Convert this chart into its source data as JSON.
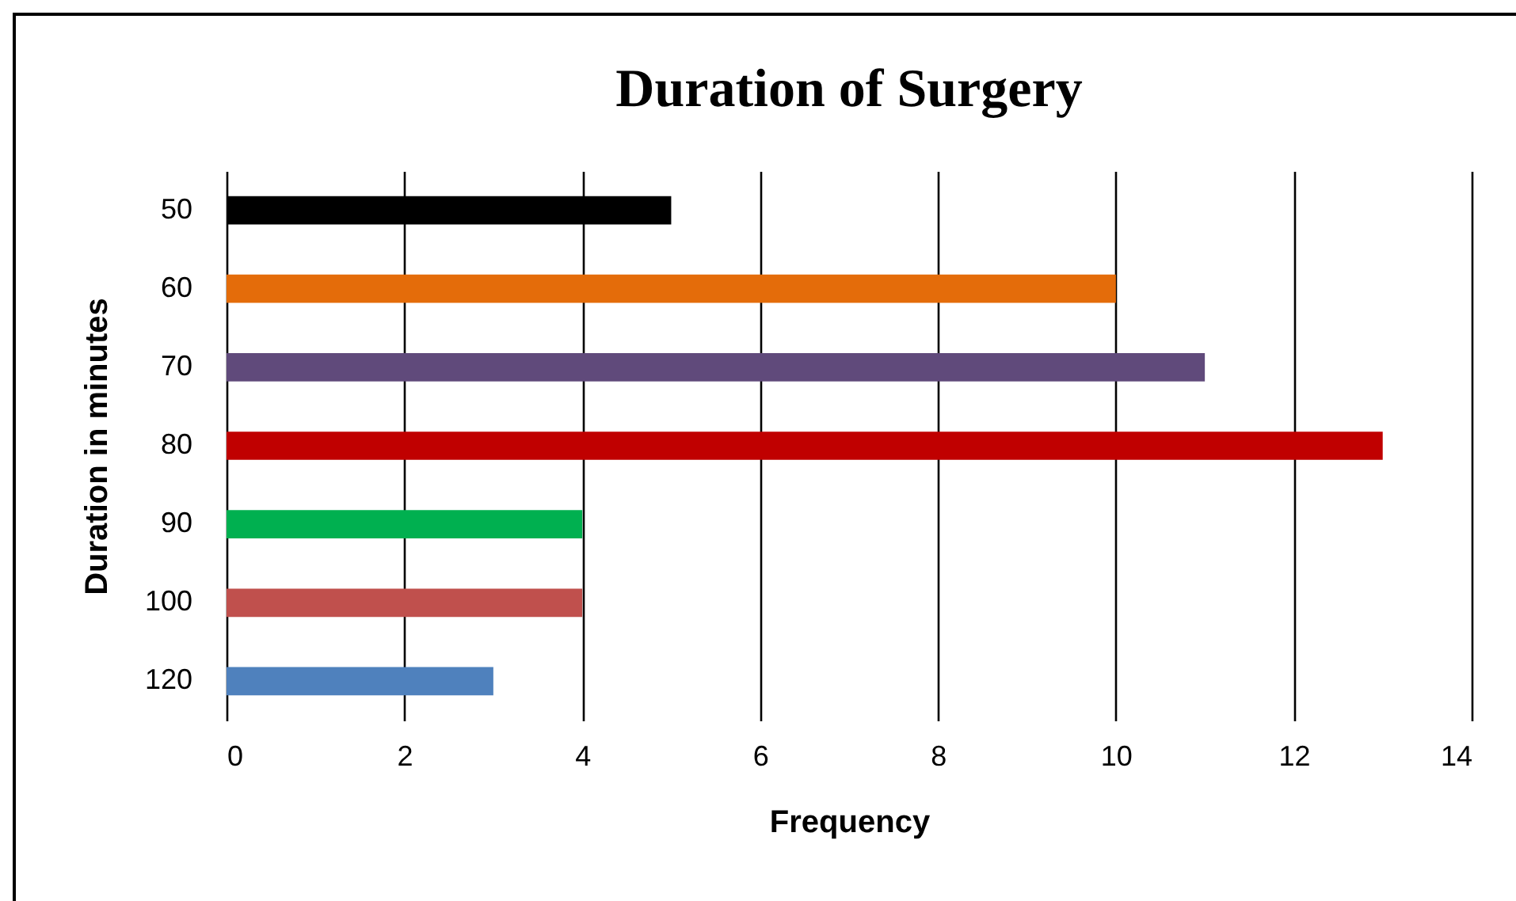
{
  "chart_data": {
    "type": "bar",
    "orientation": "horizontal",
    "title": "Duration of Surgery",
    "xlabel": "Frequency",
    "ylabel": "Duration in minutes",
    "categories": [
      "50",
      "60",
      "70",
      "80",
      "90",
      "100",
      "120"
    ],
    "values": [
      5,
      10,
      11,
      13,
      4,
      4,
      3
    ],
    "colors": [
      "#000000",
      "#e46c0a",
      "#604a7b",
      "#c00000",
      "#00b050",
      "#c0504d",
      "#4f81bd"
    ],
    "xlim": [
      0,
      14
    ],
    "xticks": [
      0,
      2,
      4,
      6,
      8,
      10,
      12,
      14
    ],
    "grid": "x",
    "legend": false
  }
}
